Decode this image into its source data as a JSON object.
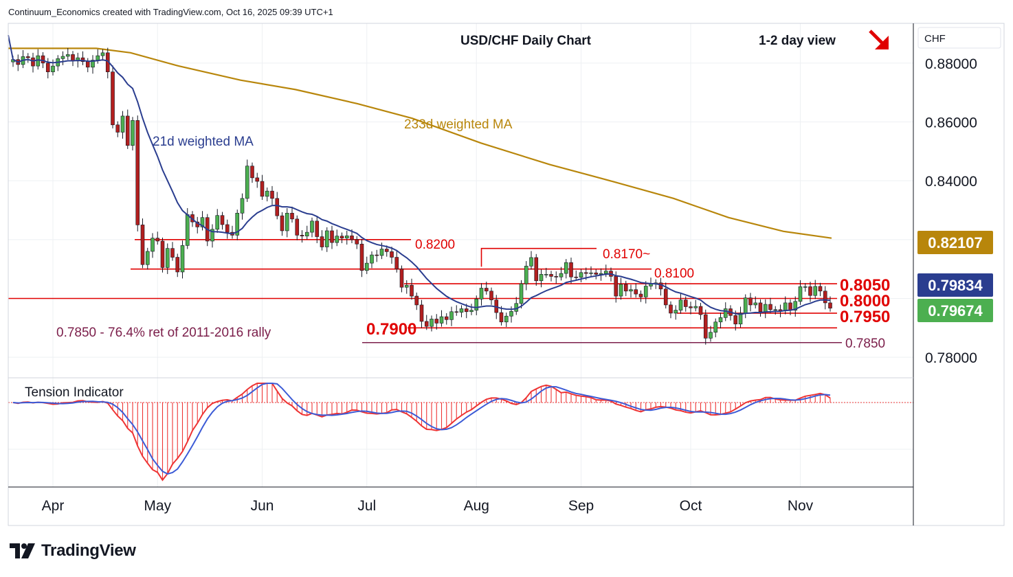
{
  "header": "Continuum_Economics created with TradingView.com, Oct 16, 2025 09:39 UTC+1",
  "brand": "TradingView",
  "chart_data": {
    "type": "candlestick",
    "title": "USD/CHF Daily Chart",
    "view": "1-2 day view",
    "view_arrow": "down-right",
    "currency": "CHF",
    "y_range": [
      0.7735,
      0.8935
    ],
    "y_ticks": [
      "0.88000",
      "0.86000",
      "0.84000",
      "0.78000"
    ],
    "x_ticks": [
      "Apr",
      "May",
      "Jun",
      "Jul",
      "Aug",
      "Sep",
      "Oct",
      "Nov"
    ],
    "price_badges": [
      {
        "value": "0.82107",
        "color": "#b8860b",
        "text_color": "#ffffff"
      },
      {
        "value": "0.79834",
        "color": "#2a3d8f",
        "text_color": "#ffffff"
      },
      {
        "value": "0.79674",
        "color": "#4caf50",
        "text_color": "#ffffff"
      }
    ],
    "level_labels": [
      {
        "text": "0.8200",
        "value": 0.82,
        "size": "normal"
      },
      {
        "text": "0.8170~",
        "value": 0.817,
        "size": "normal"
      },
      {
        "text": "0.8100",
        "value": 0.81,
        "size": "normal"
      },
      {
        "text": "0.8050",
        "value": 0.805,
        "size": "large"
      },
      {
        "text": "0.8000",
        "value": 0.8,
        "size": "large"
      },
      {
        "text": "0.7950",
        "value": 0.795,
        "size": "large"
      },
      {
        "text": "0.7900",
        "value": 0.79,
        "size": "large"
      },
      {
        "text": "0.7850",
        "value": 0.785,
        "size": "normal"
      }
    ],
    "annotations": {
      "ma21": "21d weighted MA",
      "ma233": "233d weighted MA",
      "retracement": "0.7850 - 76.4% ret of 2011-2016 rally",
      "indicator": "Tension Indicator"
    },
    "colors": {
      "bull": "#4caf50",
      "bear": "#b21f1f",
      "ma21": "#2a3d8f",
      "ma233": "#b8860b",
      "level": "#e00000",
      "ret": "#7b1e4a",
      "ind_red": "#ee3333",
      "ind_blue": "#3c5bd6"
    },
    "series": [
      {
        "name": "USD/CHF daily",
        "close": [
          0.8812,
          0.8795,
          0.8822,
          0.8818,
          0.879,
          0.8825,
          0.88,
          0.877,
          0.879,
          0.8815,
          0.8823,
          0.8829,
          0.8807,
          0.8818,
          0.8805,
          0.8786,
          0.881,
          0.8825,
          0.8835,
          0.877,
          0.859,
          0.8565,
          0.862,
          0.852,
          0.8605,
          0.825,
          0.8115,
          0.816,
          0.8205,
          0.8195,
          0.8105,
          0.817,
          0.814,
          0.809,
          0.818,
          0.8285,
          0.826,
          0.8243,
          0.8275,
          0.8195,
          0.8235,
          0.8282,
          0.8251,
          0.8225,
          0.8215,
          0.829,
          0.834,
          0.845,
          0.841,
          0.8398,
          0.8347,
          0.8365,
          0.834,
          0.8281,
          0.823,
          0.829,
          0.827,
          0.8215,
          0.8212,
          0.8225,
          0.8263,
          0.821,
          0.8175,
          0.823,
          0.819,
          0.8212,
          0.8205,
          0.8213,
          0.82,
          0.8185,
          0.8095,
          0.812,
          0.8148,
          0.8146,
          0.8168,
          0.8159,
          0.814,
          0.81,
          0.8038,
          0.8045,
          0.8008,
          0.7978,
          0.7922,
          0.7905,
          0.793,
          0.7916,
          0.7938,
          0.7928,
          0.7955,
          0.7953,
          0.7965,
          0.7955,
          0.796,
          0.7998,
          0.8035,
          0.8025,
          0.7995,
          0.7952,
          0.792,
          0.794,
          0.7956,
          0.7983,
          0.805,
          0.811,
          0.8139,
          0.806,
          0.8082,
          0.8082,
          0.8075,
          0.8073,
          0.8085,
          0.8122,
          0.8073,
          0.8072,
          0.8088,
          0.8085,
          0.8087,
          0.8082,
          0.8085,
          0.8093,
          0.8075,
          0.8008,
          0.8048,
          0.8025,
          0.803,
          0.8015,
          0.8005,
          0.8042,
          0.8049,
          0.8053,
          0.8032,
          0.7978,
          0.795,
          0.796,
          0.7995,
          0.7972,
          0.7968,
          0.7973,
          0.7945,
          0.7865,
          0.7885,
          0.792,
          0.7935,
          0.7965,
          0.7942,
          0.7913,
          0.795,
          0.8002,
          0.7978,
          0.7985,
          0.7955,
          0.798,
          0.7962,
          0.7962,
          0.7958,
          0.7985,
          0.796,
          0.799,
          0.804,
          0.804,
          0.801,
          0.8041,
          0.8025,
          0.7985,
          0.7967
        ]
      }
    ]
  }
}
